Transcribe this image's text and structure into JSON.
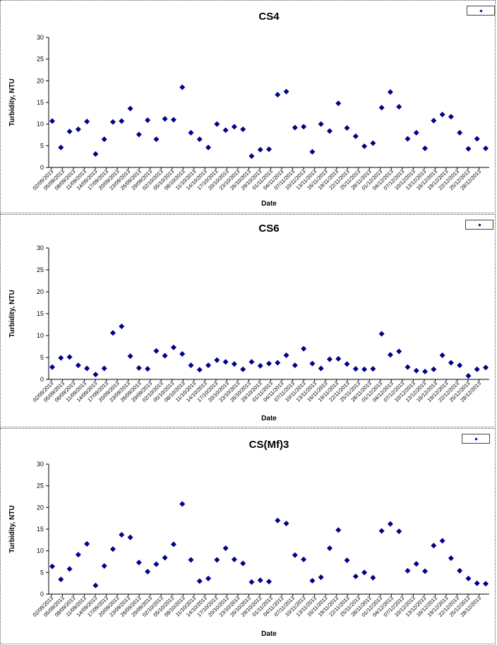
{
  "chart_data": [
    {
      "type": "scatter",
      "title": "CS4",
      "xlabel": "Date",
      "ylabel": "Turbidity, NTU",
      "ylim": [
        0,
        30
      ],
      "yticks": [
        "0",
        "5",
        "10",
        "15",
        "20",
        "25",
        "30"
      ],
      "xticks": [
        "02/09/2013",
        "05/09/2013",
        "08/09/2013",
        "11/09/2013",
        "14/09/2013",
        "17/09/2013",
        "20/09/2013",
        "23/09/2013",
        "26/09/2013",
        "29/09/2013",
        "02/10/2013",
        "05/10/2013",
        "08/10/2013",
        "11/10/2013",
        "14/10/2013",
        "17/10/2013",
        "20/10/2013",
        "23/10/2013",
        "26/10/2013",
        "29/10/2013",
        "01/11/2013",
        "04/11/2013",
        "07/11/2013",
        "10/11/2013",
        "13/11/2013",
        "16/11/2013",
        "19/11/2013",
        "22/11/2013",
        "25/11/2013",
        "28/11/2013",
        "01/12/2013",
        "04/12/2013",
        "07/12/2013",
        "10/12/2013",
        "13/12/2013",
        "16/12/2013",
        "19/12/2013",
        "22/12/2013",
        "25/12/2013",
        "28/12/2013"
      ],
      "legend": {
        "position": "top-right"
      },
      "marker_color": "#00008B",
      "series": [
        {
          "x": [
            0,
            1,
            2,
            3,
            4,
            5,
            6,
            7,
            8,
            9,
            10,
            11,
            14,
            15,
            16,
            17,
            18,
            19,
            20,
            21,
            22,
            23,
            24,
            25,
            26,
            27,
            28,
            29,
            30,
            31,
            32,
            33,
            34,
            35,
            36,
            37,
            38,
            39,
            40,
            41,
            42,
            43,
            44,
            45,
            46,
            47,
            48,
            49,
            50,
            51,
            52,
            53,
            54,
            55,
            56,
            57,
            58,
            59,
            60,
            61,
            62
          ],
          "y": [
            10.7,
            4.6,
            8.3,
            8.8,
            10.6,
            3.1,
            6.5,
            10.5,
            10.7,
            13.6,
            7.6,
            10.9,
            6.5,
            11.2,
            11.0,
            18.5,
            8.0,
            6.5,
            4.6,
            10.0,
            8.6,
            9.4,
            8.8,
            2.6,
            4.1,
            4.2,
            16.8,
            17.5,
            9.2,
            9.4,
            3.6,
            10.0,
            8.4,
            14.8,
            9.1,
            7.2,
            4.9,
            5.6,
            13.8,
            17.4,
            14.0,
            6.6,
            8.0,
            4.4,
            10.8,
            12.2,
            11.7,
            8.0,
            4.3,
            6.6,
            4.4,
            null,
            null,
            null,
            null,
            null,
            null,
            null,
            null,
            null,
            null
          ]
        }
      ]
    },
    {
      "type": "scatter",
      "title": "CS6",
      "xlabel": "Date",
      "ylabel": "Turbidity, NTU",
      "ylim": [
        0,
        30
      ],
      "yticks": [
        "0",
        "5",
        "10",
        "15",
        "20",
        "25",
        "30"
      ],
      "xticks": [
        "02/09/2013",
        "05/09/2013",
        "08/09/2013",
        "11/09/2013",
        "14/09/2013",
        "17/09/2013",
        "20/09/2013",
        "23/09/2013",
        "26/09/2013",
        "29/09/2013",
        "02/10/2013",
        "05/10/2013",
        "08/10/2013",
        "11/10/2013",
        "14/10/2013",
        "17/10/2013",
        "20/10/2013",
        "23/10/2013",
        "26/10/2013",
        "29/10/2013",
        "01/11/2013",
        "04/11/2013",
        "07/11/2013",
        "10/11/2013",
        "13/11/2013",
        "16/11/2013",
        "19/11/2013",
        "22/11/2013",
        "25/11/2013",
        "28/11/2013",
        "01/12/2013",
        "04/12/2013",
        "07/12/2013",
        "10/12/2013",
        "13/12/2013",
        "16/12/2013",
        "19/12/2013",
        "22/12/2013",
        "25/12/2013",
        "28/12/2013"
      ],
      "legend": {
        "position": "top-right"
      },
      "marker_color": "#00008B",
      "series": [
        {
          "x": [
            0,
            1,
            2,
            3,
            4,
            5,
            6,
            7,
            8,
            9,
            10,
            11,
            12,
            13,
            14,
            15,
            16,
            17,
            18,
            19,
            20,
            21,
            22,
            23,
            24,
            25,
            26,
            27,
            28,
            29,
            30,
            31,
            32,
            33,
            34,
            35,
            36,
            37,
            38,
            39,
            40,
            41,
            42,
            43,
            44,
            45,
            46,
            47,
            48,
            49,
            50,
            51,
            52,
            53,
            54,
            55,
            56,
            57,
            58,
            59,
            60
          ],
          "y": [
            2.8,
            4.9,
            5.1,
            3.2,
            2.5,
            1.1,
            2.5,
            10.6,
            12.1,
            5.3,
            2.6,
            2.4,
            6.5,
            5.4,
            7.3,
            5.8,
            3.2,
            2.2,
            3.2,
            4.4,
            4.0,
            3.5,
            2.3,
            4.0,
            3.1,
            3.6,
            3.8,
            5.5,
            3.2,
            7.0,
            3.6,
            2.5,
            4.6,
            4.7,
            3.5,
            2.4,
            2.3,
            2.4,
            10.4,
            5.6,
            6.4,
            2.8,
            2.0,
            1.8,
            2.3,
            5.5,
            3.8,
            3.2,
            0.8,
            2.3,
            2.7,
            null,
            null,
            null,
            null,
            null,
            null,
            null,
            null,
            null,
            null
          ]
        }
      ]
    },
    {
      "type": "scatter",
      "title": "CS(Mf)3",
      "xlabel": "Date",
      "ylabel": "Turbidity, NTU",
      "ylim": [
        0,
        30
      ],
      "yticks": [
        "0",
        "5",
        "10",
        "15",
        "20",
        "25",
        "30"
      ],
      "xticks": [
        "02/09/2013",
        "05/09/2013",
        "08/09/2013",
        "11/09/2013",
        "14/09/2013",
        "17/09/2013",
        "20/09/2013",
        "23/09/2013",
        "26/09/2013",
        "29/09/2013",
        "02/10/2013",
        "05/10/2013",
        "08/10/2013",
        "11/10/2013",
        "14/10/2013",
        "17/10/2013",
        "20/10/2013",
        "23/10/2013",
        "26/10/2013",
        "29/10/2013",
        "01/11/2013",
        "04/11/2013",
        "07/11/2013",
        "10/11/2013",
        "13/11/2013",
        "16/11/2013",
        "19/11/2013",
        "22/11/2013",
        "25/11/2013",
        "28/11/2013",
        "01/12/2013",
        "04/12/2013",
        "07/12/2013",
        "10/12/2013",
        "13/12/2013",
        "16/12/2013",
        "19/12/2013",
        "22/12/2013",
        "25/12/2013",
        "28/12/2013"
      ],
      "legend": {
        "position": "top-right"
      },
      "marker_color": "#00008B",
      "series": [
        {
          "x": [
            0,
            1,
            2,
            3,
            4,
            5,
            6,
            7,
            8,
            9,
            10,
            11,
            12,
            13,
            14,
            15,
            16,
            17,
            18,
            19,
            20,
            21,
            22,
            23,
            24,
            25,
            26,
            27,
            28,
            29,
            30,
            31,
            32,
            33,
            34,
            35,
            36,
            37,
            38,
            39,
            40,
            41,
            42,
            43,
            44,
            45,
            46,
            47,
            48,
            49,
            50,
            51,
            52,
            53,
            54,
            55,
            56,
            57,
            58,
            59,
            60
          ],
          "y": [
            6.4,
            3.4,
            5.8,
            9.1,
            11.6,
            2.0,
            6.5,
            10.4,
            13.7,
            13.1,
            7.3,
            5.2,
            6.9,
            8.4,
            11.5,
            20.8,
            7.9,
            3.0,
            3.6,
            7.9,
            10.6,
            8.0,
            7.1,
            2.8,
            3.2,
            2.9,
            17.0,
            16.3,
            9.0,
            8.0,
            3.1,
            3.9,
            10.6,
            14.8,
            7.8,
            4.1,
            5.0,
            3.8,
            14.6,
            16.2,
            14.5,
            5.4,
            7.0,
            5.3,
            11.2,
            12.3,
            8.3,
            5.4,
            3.6,
            2.5,
            2.4,
            null,
            null,
            null,
            null,
            null,
            null,
            null,
            null,
            null,
            null
          ]
        }
      ]
    }
  ]
}
